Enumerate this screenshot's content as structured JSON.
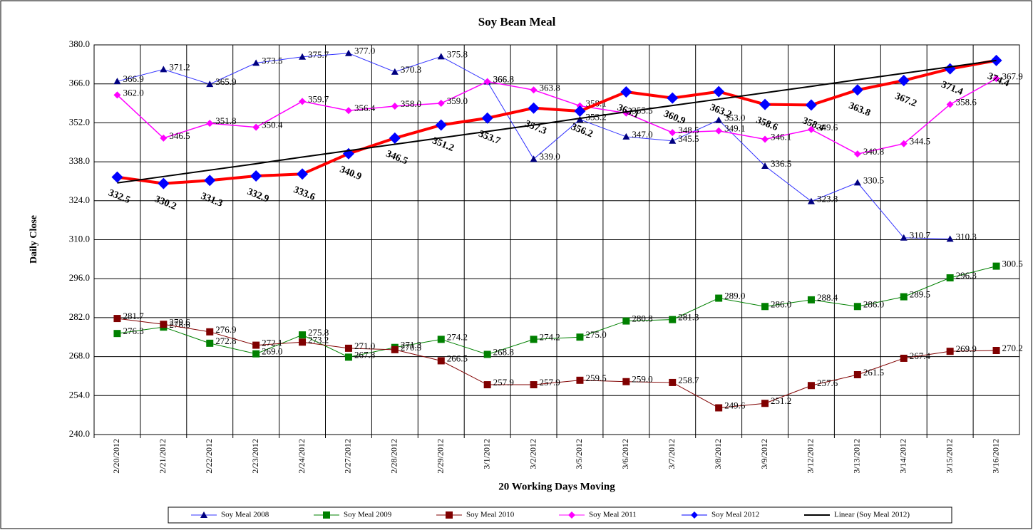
{
  "chart_data": {
    "type": "line",
    "title": "Soy Bean Meal",
    "x_label": "20 Working Days Moving",
    "y_label": "Daily Close",
    "categories": [
      "2/20/2012",
      "2/21/2012",
      "2/22/2012",
      "2/23/2012",
      "2/24/2012",
      "2/27/2012",
      "2/28/2012",
      "2/29/2012",
      "3/1/2012",
      "3/2/2012",
      "3/5/2012",
      "3/6/2012",
      "3/7/2012",
      "3/8/2012",
      "3/9/2012",
      "3/12/2012",
      "3/13/2012",
      "3/14/2012",
      "3/15/2012",
      "3/16/2012"
    ],
    "ylim": [
      240,
      380
    ],
    "yticks": [
      {
        "value": 240,
        "label": "240.0"
      },
      {
        "value": 254,
        "label": "254.0"
      },
      {
        "value": 268,
        "label": "268.0"
      },
      {
        "value": 282,
        "label": "282.0"
      },
      {
        "value": 296,
        "label": "296.0"
      },
      {
        "value": 310,
        "label": "310.0"
      },
      {
        "value": 324,
        "label": "324.0"
      },
      {
        "value": 338,
        "label": "338.0"
      },
      {
        "value": 352,
        "label": "352.0"
      },
      {
        "value": 366,
        "label": "366.0"
      },
      {
        "value": 380,
        "label": "380.0"
      }
    ],
    "grid": true,
    "legend": "bottom",
    "series": [
      {
        "name": "Soy Meal 2008",
        "color": "#3333ff",
        "marker_color": "#000080",
        "marker": "triangle",
        "width": 1,
        "values": [
          366.9,
          371.2,
          365.9,
          373.5,
          375.7,
          377.0,
          370.3,
          375.8,
          366.8,
          339.0,
          353.2,
          347.0,
          345.5,
          353.0,
          336.5,
          323.8,
          330.5,
          310.7,
          310.3,
          null
        ],
        "value_labels": [
          "366.9",
          "371.2",
          "365.9",
          "373.5",
          "375.7",
          "377.0",
          "370.3",
          "375.8",
          "366.8",
          "339.0",
          "353.2",
          "347.0",
          "345.5",
          "353.0",
          "336.5",
          "323.8",
          "330.5",
          "310.7",
          "310.3",
          null
        ]
      },
      {
        "name": "Soy Meal 2009",
        "color": "#008000",
        "marker_color": "#008000",
        "marker": "square",
        "width": 1,
        "values": [
          276.3,
          278.6,
          272.8,
          269.0,
          275.8,
          267.8,
          271.3,
          274.2,
          268.8,
          274.2,
          275.0,
          280.8,
          281.3,
          289.0,
          286.0,
          288.4,
          286.0,
          289.5,
          296.3,
          300.5
        ],
        "value_labels": [
          "276.3",
          "278.6",
          "272.8",
          "269.0",
          "275.8",
          "267.8",
          "271.3",
          "274.2",
          "268.8",
          "274.2",
          "275.0",
          "280.8",
          "281.3",
          "289.0",
          "286.0",
          "288.4",
          "286.0",
          "289.5",
          "296.3",
          "300.5"
        ]
      },
      {
        "name": "Soy Meal 2010",
        "color": "#800000",
        "marker_color": "#800000",
        "marker": "square",
        "width": 1,
        "values": [
          281.7,
          279.6,
          276.9,
          272.1,
          273.2,
          271.0,
          270.5,
          266.5,
          257.9,
          257.9,
          259.5,
          259.0,
          258.7,
          249.6,
          251.2,
          257.6,
          261.5,
          267.4,
          269.9,
          270.2
        ],
        "value_labels": [
          "281.7",
          "279.6",
          "276.9",
          "272.1",
          "273.2",
          "271.0",
          "270.5",
          "266.5",
          "257.9",
          "257.9",
          "259.5",
          "259.0",
          "258.7",
          "249.6",
          "251.2",
          "257.6",
          "261.5",
          "267.4",
          "269.9",
          "270.2"
        ]
      },
      {
        "name": "Soy Meal 2011",
        "color": "#ff00ff",
        "marker_color": "#ff00ff",
        "marker": "diamond",
        "width": 1.5,
        "values": [
          362.0,
          346.5,
          351.8,
          350.4,
          359.7,
          356.4,
          358.0,
          359.0,
          366.8,
          363.8,
          358.1,
          355.5,
          348.5,
          349.1,
          346.1,
          349.6,
          340.8,
          344.5,
          358.6,
          367.9
        ],
        "value_labels": [
          "362.0",
          "346.5",
          "351.8",
          "350.4",
          "359.7",
          "356.4",
          "358.0",
          "359.0",
          "366.8",
          "363.8",
          "358.1",
          "355.5",
          "348.5",
          "349.1",
          "346.1",
          "349.6",
          "340.8",
          "344.5",
          "358.6",
          "367.9"
        ]
      },
      {
        "name": "Soy Meal 2012",
        "color": "#ff0000",
        "marker_color": "#0000ff",
        "marker": "big-diamond",
        "width": 4,
        "values": [
          332.5,
          330.2,
          331.3,
          332.9,
          333.6,
          340.9,
          346.5,
          351.2,
          353.7,
          357.3,
          356.2,
          363.1,
          360.9,
          363.2,
          358.6,
          358.4,
          363.8,
          367.2,
          371.4,
          374.4
        ],
        "value_labels": [
          "332.5",
          "330.2",
          "331.3",
          "332.9",
          "333.6",
          "340.9",
          "346.5",
          "351.2",
          "353.7",
          "357.3",
          "356.2",
          "363.1",
          "360.9",
          "363.2",
          "358.6",
          "358.4",
          "363.8",
          "367.2",
          "371.4",
          "374.4"
        ]
      },
      {
        "name": "Linear (Soy Meal 2012)",
        "color": "#000000",
        "marker": "none",
        "width": 2,
        "values": [
          330.4,
          332.7,
          335.0,
          337.3,
          339.7,
          342.0,
          344.3,
          346.6,
          348.9,
          351.2,
          353.6,
          355.9,
          358.2,
          360.5,
          362.8,
          365.1,
          367.5,
          369.8,
          372.1,
          374.4
        ]
      }
    ]
  }
}
